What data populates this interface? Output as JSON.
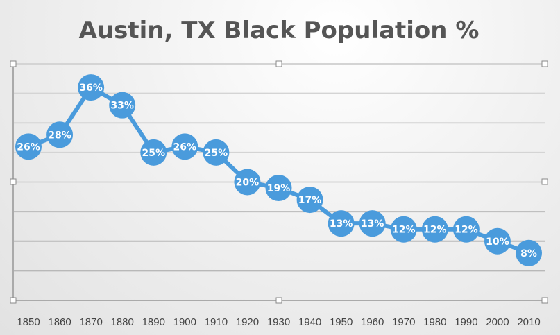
{
  "chart_data": {
    "type": "line",
    "title": "Austin, TX Black Population %",
    "xlabel": "",
    "ylabel": "",
    "categories": [
      "1850",
      "1860",
      "1870",
      "1880",
      "1890",
      "1900",
      "1910",
      "1920",
      "1930",
      "1940",
      "1950",
      "1960",
      "1970",
      "1980",
      "1990",
      "2000",
      "2010"
    ],
    "values": [
      26,
      28,
      36,
      33,
      25,
      26,
      25,
      20,
      19,
      17,
      13,
      13,
      12,
      12,
      12,
      10,
      8
    ],
    "data_labels": [
      "26%",
      "28%",
      "36%",
      "33%",
      "25%",
      "26%",
      "25%",
      "20%",
      "19%",
      "17%",
      "13%",
      "13%",
      "12%",
      "12%",
      "12%",
      "10%",
      "8%"
    ],
    "ylim": [
      0,
      40
    ],
    "y_gridline_step": 5,
    "y_tick_labels_visible": false,
    "grid": true,
    "legend": "none",
    "series_color": "#4a9bdc",
    "marker": "circle"
  }
}
